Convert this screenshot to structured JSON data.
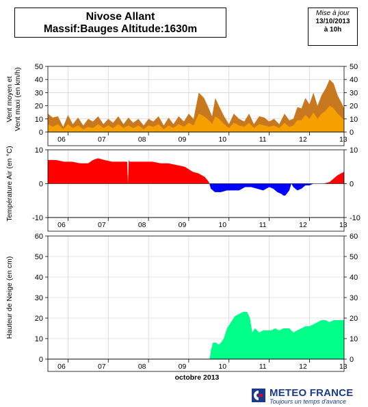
{
  "header": {
    "station": "Nivose Allant",
    "subtitle": "Massif:Bauges Altitude:1630m"
  },
  "update": {
    "label": "Mise à jour",
    "date": "13/10/2013",
    "time": "à 10h"
  },
  "footer": {
    "brand": "METEO FRANCE",
    "tagline": "Toujours un temps d'avance"
  },
  "chart_data": [
    {
      "type": "area",
      "ylabel": "Vent moyen et\nVent maxi (en km/h)",
      "ylim": [
        0,
        50
      ],
      "yticks": [
        0,
        10,
        20,
        30,
        40,
        50
      ],
      "x_tick_labels": [
        "06",
        "07",
        "08",
        "09",
        "10",
        "11",
        "12",
        "13"
      ],
      "x_ticks_day": [
        5.5,
        6.5,
        7.5,
        8.5,
        9.5,
        10.5,
        11.5,
        12.5
      ],
      "xlim": [
        5.5,
        12.86
      ],
      "grid": true,
      "series": [
        {
          "colors": "#c8781e",
          "x": [
            5.5,
            5.62,
            5.75,
            5.88,
            6.0,
            6.12,
            6.25,
            6.38,
            6.5,
            6.62,
            6.75,
            6.88,
            7.0,
            7.12,
            7.25,
            7.38,
            7.5,
            7.62,
            7.75,
            7.88,
            8.0,
            8.12,
            8.25,
            8.38,
            8.5,
            8.62,
            8.75,
            8.88,
            9.0,
            9.12,
            9.25,
            9.38,
            9.5,
            9.58,
            9.66,
            9.75,
            9.88,
            10.0,
            10.12,
            10.25,
            10.38,
            10.5,
            10.62,
            10.75,
            10.88,
            11.0,
            11.12,
            11.25,
            11.38,
            11.5,
            11.6,
            11.7,
            11.8,
            11.9,
            12.0,
            12.1,
            12.2,
            12.3,
            12.4,
            12.5,
            12.6,
            12.7,
            12.8,
            12.86
          ],
          "values": [
            14,
            11,
            12,
            4,
            13,
            6,
            11,
            5,
            10,
            8,
            12,
            6,
            10,
            7,
            12,
            6,
            11,
            7,
            10,
            5,
            10,
            8,
            12,
            5,
            11,
            6,
            12,
            8,
            14,
            10,
            30,
            26,
            18,
            12,
            26,
            20,
            12,
            6,
            14,
            10,
            8,
            14,
            6,
            12,
            11,
            8,
            10,
            6,
            14,
            9,
            10,
            19,
            18,
            26,
            21,
            30,
            20,
            28,
            33,
            40,
            37,
            28,
            22,
            18
          ]
        },
        {
          "colors": "#f5a000",
          "x": [
            5.5,
            5.62,
            5.75,
            5.88,
            6.0,
            6.12,
            6.25,
            6.38,
            6.5,
            6.62,
            6.75,
            6.88,
            7.0,
            7.12,
            7.25,
            7.38,
            7.5,
            7.62,
            7.75,
            7.88,
            8.0,
            8.12,
            8.25,
            8.38,
            8.5,
            8.62,
            8.75,
            8.88,
            9.0,
            9.12,
            9.25,
            9.38,
            9.5,
            9.58,
            9.66,
            9.75,
            9.88,
            10.0,
            10.12,
            10.25,
            10.38,
            10.5,
            10.62,
            10.75,
            10.88,
            11.0,
            11.12,
            11.25,
            11.38,
            11.5,
            11.6,
            11.7,
            11.8,
            11.9,
            12.0,
            12.1,
            12.2,
            12.3,
            12.4,
            12.5,
            12.6,
            12.7,
            12.8,
            12.86
          ],
          "values": [
            6,
            4,
            6,
            2,
            6,
            3,
            5,
            2,
            4,
            3,
            6,
            3,
            5,
            3,
            6,
            3,
            5,
            3,
            5,
            2,
            5,
            4,
            6,
            2,
            5,
            3,
            6,
            4,
            7,
            5,
            14,
            12,
            9,
            6,
            12,
            10,
            6,
            3,
            7,
            5,
            4,
            7,
            3,
            6,
            5,
            4,
            5,
            3,
            7,
            4,
            5,
            9,
            9,
            13,
            10,
            15,
            10,
            14,
            16,
            20,
            18,
            14,
            11,
            9
          ]
        }
      ]
    },
    {
      "type": "area",
      "ylabel": "Température Air (en °C)",
      "ylim": [
        -10,
        10
      ],
      "yticks": [
        -10,
        0,
        10
      ],
      "x_tick_labels": [
        "06",
        "07",
        "08",
        "09",
        "10",
        "11",
        "12",
        "13"
      ],
      "grid": true,
      "positive_color": "#ff0000",
      "negative_color": "#0000ff",
      "x": [
        5.5,
        5.7,
        5.9,
        6.1,
        6.3,
        6.5,
        6.62,
        6.75,
        6.9,
        7.1,
        7.3,
        7.47,
        7.49,
        7.51,
        7.53,
        7.7,
        7.9,
        8.1,
        8.3,
        8.5,
        8.7,
        8.9,
        9.1,
        9.25,
        9.4,
        9.5,
        9.55,
        9.65,
        9.8,
        9.95,
        10.1,
        10.25,
        10.4,
        10.55,
        10.7,
        10.85,
        11.0,
        11.1,
        11.2,
        11.3,
        11.35,
        11.4,
        11.5,
        11.55,
        11.6,
        11.7,
        11.8,
        11.9,
        12.0,
        12.1,
        12.2,
        12.35,
        12.5,
        12.6,
        12.7,
        12.86
      ],
      "values": [
        7.0,
        7.0,
        6.5,
        6.5,
        6.0,
        6.0,
        7.0,
        7.5,
        7.0,
        6.5,
        6.5,
        6.5,
        0.0,
        7.0,
        6.5,
        6.5,
        6.5,
        6.5,
        6.0,
        6.0,
        5.5,
        5.0,
        3.5,
        3.0,
        2.0,
        0.5,
        -1.5,
        -2.5,
        -2.5,
        -2.0,
        -2.0,
        -2.0,
        -1.0,
        -1.0,
        -1.5,
        -2.0,
        -1.0,
        -1.5,
        -2.5,
        -3.0,
        -3.5,
        -3.5,
        -2.0,
        0.0,
        -1.0,
        -2.0,
        -1.5,
        -0.5,
        -0.5,
        0.0,
        0.0,
        0.0,
        0.5,
        1.5,
        2.5,
        3.5
      ]
    },
    {
      "type": "area",
      "ylabel": "Hauteur de Neige (en cm)",
      "xlabel": "octobre 2013",
      "ylim": [
        0,
        60
      ],
      "yticks": [
        0,
        10,
        20,
        30,
        40,
        50,
        60
      ],
      "x_tick_labels": [
        "06",
        "07",
        "08",
        "09",
        "10",
        "11",
        "12",
        "13"
      ],
      "grid": true,
      "color": "#00ff88",
      "x": [
        5.5,
        9.52,
        9.55,
        9.6,
        9.68,
        9.75,
        9.8,
        9.87,
        9.95,
        10.05,
        10.15,
        10.25,
        10.35,
        10.45,
        10.52,
        10.58,
        10.65,
        10.75,
        10.85,
        10.95,
        11.05,
        11.15,
        11.25,
        11.35,
        11.45,
        11.5,
        11.6,
        11.7,
        11.8,
        11.9,
        12.0,
        12.1,
        12.2,
        12.3,
        12.4,
        12.5,
        12.6,
        12.7,
        12.86
      ],
      "values": [
        0,
        0,
        4,
        8,
        8,
        7,
        8,
        10,
        15,
        18,
        21,
        22,
        23,
        23,
        20,
        13,
        15,
        13,
        14,
        14,
        14,
        15,
        14,
        15,
        15,
        15,
        13,
        14,
        15,
        16,
        16,
        17,
        18,
        19,
        19,
        18,
        19,
        19,
        19
      ]
    }
  ]
}
